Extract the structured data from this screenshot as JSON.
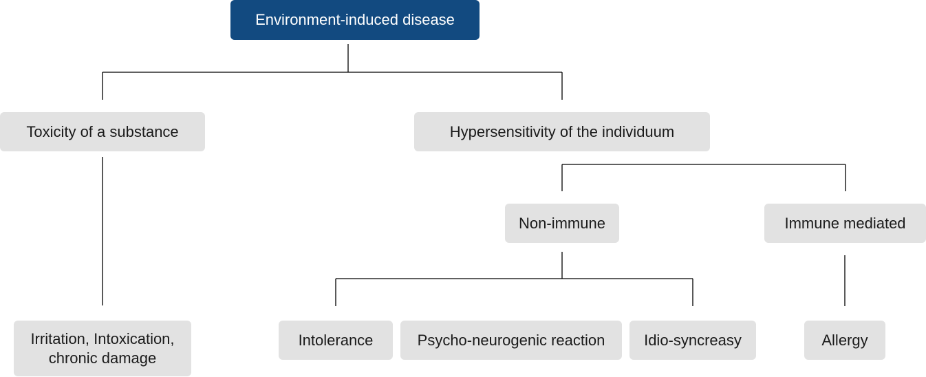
{
  "diagram": {
    "root": "Environment-induced disease",
    "toxicity": "Toxicity of a substance",
    "hypersensitivity": "Hypersensitivity of the individuum",
    "non_immune": "Non-immune",
    "immune_mediated": "Immune mediated",
    "irritation": "Irritation, Intoxication, chronic damage",
    "intolerance": "Intolerance",
    "psycho": "Psycho-neurogenic reaction",
    "idio": "Idio-syncreasy",
    "allergy": "Allergy"
  },
  "colors": {
    "root_fill": "#124a80",
    "node_fill": "#e2e2e2",
    "connector": "#000000"
  }
}
